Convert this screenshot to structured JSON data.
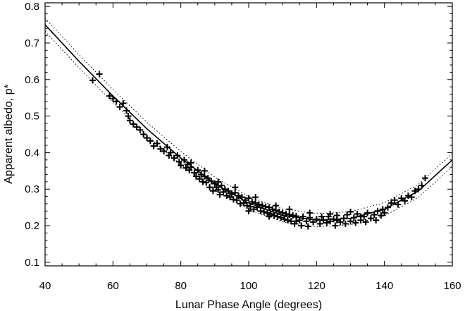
{
  "chart_data": {
    "type": "scatter",
    "title": "",
    "xlabel": "Lunar Phase Angle (degrees)",
    "ylabel": "Apparent albedo, p*",
    "xlim": [
      40,
      160
    ],
    "ylim": [
      0.09,
      0.81
    ],
    "xticks": [
      40,
      60,
      80,
      100,
      120,
      140,
      160
    ],
    "xtick_labels": [
      "40",
      "60",
      "80",
      "100",
      "120",
      "140",
      "160"
    ],
    "yticks": [
      0.1,
      0.2,
      0.3,
      0.4,
      0.5,
      0.6,
      0.7,
      0.8
    ],
    "ytick_labels": [
      "0.1",
      "0.2",
      "0.3",
      "0.4",
      "0.5",
      "0.6",
      "0.7",
      "0.8"
    ],
    "grid": false,
    "legend": "none",
    "colors": {
      "marks": "#000000",
      "background": "#ffffff"
    },
    "series": [
      {
        "kind": "fit",
        "style": "solid",
        "x": [
          40,
          50,
          60,
          70,
          80,
          90,
          100,
          110,
          120,
          130,
          140,
          150,
          160
        ],
        "y": [
          0.75,
          0.65,
          0.555,
          0.465,
          0.385,
          0.315,
          0.262,
          0.228,
          0.215,
          0.22,
          0.245,
          0.295,
          0.38
        ]
      },
      {
        "kind": "upper-bound",
        "style": "dotted",
        "x": [
          40,
          50,
          60,
          70,
          80,
          90,
          100,
          110,
          120,
          130,
          140,
          150,
          160
        ],
        "y": [
          0.768,
          0.668,
          0.573,
          0.483,
          0.403,
          0.333,
          0.28,
          0.246,
          0.233,
          0.238,
          0.263,
          0.313,
          0.398
        ]
      },
      {
        "kind": "lower-bound",
        "style": "dotted",
        "x": [
          40,
          50,
          60,
          70,
          80,
          90,
          100,
          110,
          120,
          130,
          140,
          150,
          160
        ],
        "y": [
          0.732,
          0.632,
          0.537,
          0.447,
          0.367,
          0.297,
          0.244,
          0.21,
          0.197,
          0.202,
          0.227,
          0.277,
          0.362
        ]
      },
      {
        "kind": "observations",
        "marker": "+",
        "points": [
          [
            54,
            0.598
          ],
          [
            56,
            0.615
          ],
          [
            59,
            0.555
          ],
          [
            60,
            0.548
          ],
          [
            61,
            0.54
          ],
          [
            62,
            0.525
          ],
          [
            63,
            0.535
          ],
          [
            64,
            0.515
          ],
          [
            64.5,
            0.5
          ],
          [
            65,
            0.488
          ],
          [
            66,
            0.478
          ],
          [
            67,
            0.47
          ],
          [
            68,
            0.462
          ],
          [
            69,
            0.45
          ],
          [
            70,
            0.44
          ],
          [
            71,
            0.432
          ],
          [
            72,
            0.418
          ],
          [
            73,
            0.425
          ],
          [
            74,
            0.41
          ],
          [
            75,
            0.404
          ],
          [
            76,
            0.415
          ],
          [
            76.5,
            0.392
          ],
          [
            77,
            0.4
          ],
          [
            78,
            0.385
          ],
          [
            79,
            0.392
          ],
          [
            79.5,
            0.375
          ],
          [
            80,
            0.365
          ],
          [
            81,
            0.38
          ],
          [
            81.5,
            0.358
          ],
          [
            82,
            0.368
          ],
          [
            82.5,
            0.352
          ],
          [
            83,
            0.36
          ],
          [
            84,
            0.345
          ],
          [
            84.5,
            0.335
          ],
          [
            85,
            0.352
          ],
          [
            85.5,
            0.328
          ],
          [
            86,
            0.34
          ],
          [
            86.5,
            0.32
          ],
          [
            87,
            0.335
          ],
          [
            87.5,
            0.318
          ],
          [
            88,
            0.33
          ],
          [
            88.5,
            0.305
          ],
          [
            89,
            0.322
          ],
          [
            89.5,
            0.295
          ],
          [
            90,
            0.315
          ],
          [
            90.5,
            0.305
          ],
          [
            91,
            0.298
          ],
          [
            91.5,
            0.285
          ],
          [
            92,
            0.31
          ],
          [
            92.5,
            0.292
          ],
          [
            93,
            0.3
          ],
          [
            93.5,
            0.282
          ],
          [
            94,
            0.295
          ],
          [
            94.5,
            0.278
          ],
          [
            95,
            0.288
          ],
          [
            95.5,
            0.272
          ],
          [
            96,
            0.29
          ],
          [
            96.5,
            0.27
          ],
          [
            97,
            0.282
          ],
          [
            97.5,
            0.26
          ],
          [
            98,
            0.278
          ],
          [
            98.5,
            0.262
          ],
          [
            99,
            0.27
          ],
          [
            99.5,
            0.255
          ],
          [
            100,
            0.275
          ],
          [
            100.5,
            0.252
          ],
          [
            101,
            0.265
          ],
          [
            101.5,
            0.245
          ],
          [
            102,
            0.262
          ],
          [
            102.5,
            0.25
          ],
          [
            103,
            0.258
          ],
          [
            103.5,
            0.24
          ],
          [
            104,
            0.255
          ],
          [
            104.5,
            0.238
          ],
          [
            105,
            0.252
          ],
          [
            105.5,
            0.235
          ],
          [
            106,
            0.25
          ],
          [
            106.5,
            0.232
          ],
          [
            107,
            0.245
          ],
          [
            107.5,
            0.228
          ],
          [
            108,
            0.242
          ],
          [
            108.5,
            0.225
          ],
          [
            109,
            0.238
          ],
          [
            109.5,
            0.222
          ],
          [
            110,
            0.235
          ],
          [
            110.5,
            0.218
          ],
          [
            111,
            0.232
          ],
          [
            111.5,
            0.215
          ],
          [
            112,
            0.23
          ],
          [
            112.5,
            0.212
          ],
          [
            113,
            0.228
          ],
          [
            113.5,
            0.205
          ],
          [
            114,
            0.226
          ],
          [
            115,
            0.215
          ],
          [
            115.5,
            0.2
          ],
          [
            116,
            0.225
          ],
          [
            117,
            0.212
          ],
          [
            117.5,
            0.198
          ],
          [
            118,
            0.222
          ],
          [
            119,
            0.21
          ],
          [
            120,
            0.218
          ],
          [
            121,
            0.205
          ],
          [
            121.5,
            0.225
          ],
          [
            122,
            0.215
          ],
          [
            123,
            0.208
          ],
          [
            123.5,
            0.225
          ],
          [
            124,
            0.212
          ],
          [
            125,
            0.218
          ],
          [
            125.5,
            0.2
          ],
          [
            126,
            0.228
          ],
          [
            127,
            0.21
          ],
          [
            128,
            0.22
          ],
          [
            128.5,
            0.205
          ],
          [
            129,
            0.23
          ],
          [
            130,
            0.212
          ],
          [
            131,
            0.222
          ],
          [
            131.5,
            0.208
          ],
          [
            132,
            0.232
          ],
          [
            133,
            0.215
          ],
          [
            134,
            0.225
          ],
          [
            134.5,
            0.21
          ],
          [
            135,
            0.235
          ],
          [
            136,
            0.22
          ],
          [
            137,
            0.23
          ],
          [
            137.5,
            0.215
          ],
          [
            138,
            0.24
          ],
          [
            139,
            0.228
          ],
          [
            139.5,
            0.245
          ],
          [
            140,
            0.235
          ],
          [
            141,
            0.25
          ],
          [
            142,
            0.262
          ],
          [
            143,
            0.27
          ],
          [
            144,
            0.258
          ],
          [
            145,
            0.275
          ],
          [
            146,
            0.268
          ],
          [
            147,
            0.282
          ],
          [
            148,
            0.278
          ],
          [
            149,
            0.295
          ],
          [
            150,
            0.3
          ],
          [
            151,
            0.31
          ],
          [
            152,
            0.33
          ],
          [
            96,
            0.305
          ],
          [
            102,
            0.278
          ],
          [
            108,
            0.255
          ],
          [
            112,
            0.245
          ],
          [
            118,
            0.235
          ],
          [
            124,
            0.232
          ],
          [
            130,
            0.238
          ],
          [
            100,
            0.24
          ],
          [
            106,
            0.225
          ],
          [
            114,
            0.212
          ],
          [
            126,
            0.215
          ],
          [
            133,
            0.225
          ],
          [
            87,
            0.35
          ],
          [
            83,
            0.372
          ],
          [
            91,
            0.32
          ]
        ]
      }
    ]
  }
}
